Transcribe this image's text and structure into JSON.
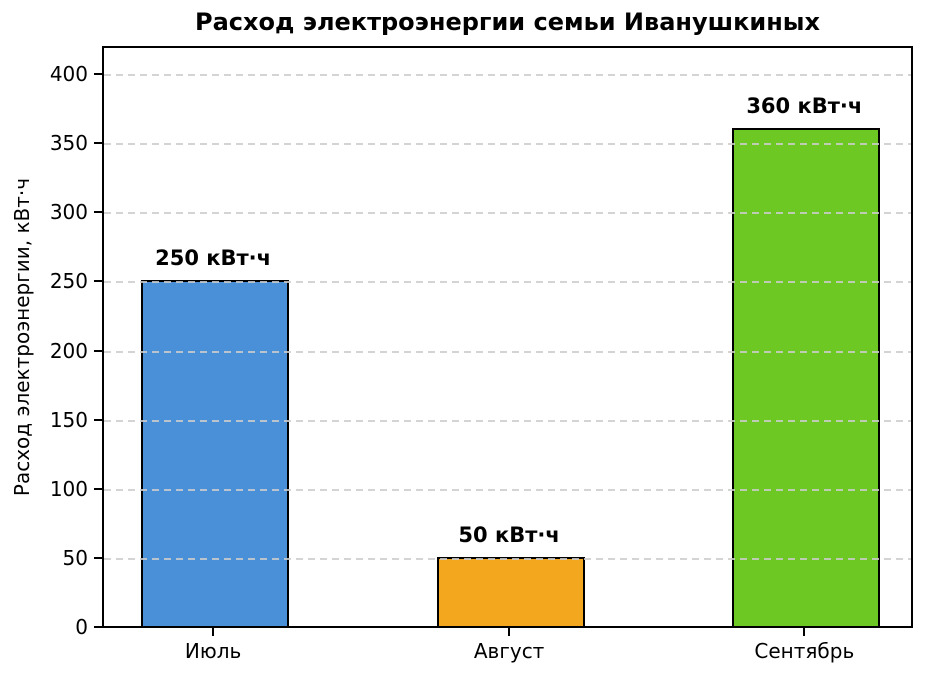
{
  "chart_data": {
    "type": "bar",
    "title": "Расход электроэнергии семьи Иванушкиных",
    "ylabel": "Расход электроэнергии, кВт·ч",
    "xlabel": "",
    "categories": [
      "Июль",
      "Август",
      "Сентябрь"
    ],
    "values": [
      250,
      50,
      360
    ],
    "value_labels": [
      "250 кВт·ч",
      "50 кВт·ч",
      "360 кВт·ч"
    ],
    "bar_colors": [
      "#4a90d8",
      "#f2a71f",
      "#6ec824"
    ],
    "bar_edge_color": "#000000",
    "ylim": [
      0,
      421
    ],
    "yticks": [
      0,
      50,
      100,
      150,
      200,
      250,
      300,
      350,
      400
    ],
    "grid": "horizontal-dashed",
    "legend": "none",
    "background_color": "#ffffff",
    "spine_color": "#000000"
  }
}
